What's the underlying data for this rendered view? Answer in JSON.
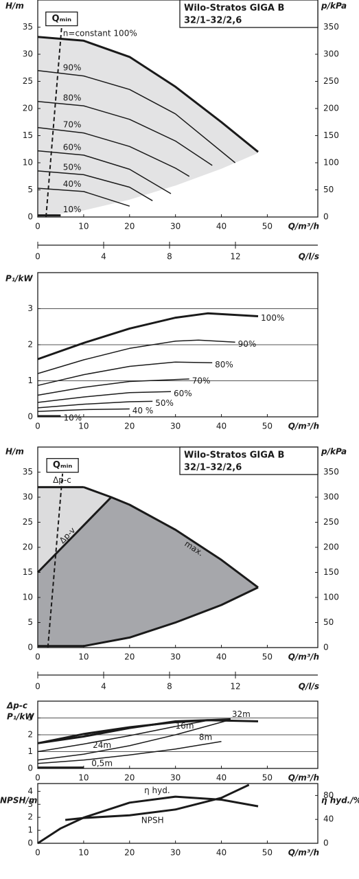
{
  "chart_data": [
    {
      "type": "line",
      "title": "Wilo-Stratos GIGA B",
      "subtitle": "32/1–32/2,6",
      "ylabel": "H/m",
      "y2label": "p/kPa",
      "xlabel": "Q/m³/h",
      "x2label": "Q/l/s",
      "xlim": [
        0,
        61
      ],
      "xticks": [
        0,
        10,
        20,
        30,
        40,
        50
      ],
      "ylim": [
        0,
        40
      ],
      "yticks": [
        0,
        5,
        10,
        15,
        20,
        25,
        30,
        35
      ],
      "y2lim": [
        0,
        400
      ],
      "y2ticks": [
        0,
        50,
        100,
        150,
        200,
        250,
        300,
        350
      ],
      "x2lim": [
        0,
        17
      ],
      "x2ticks": [
        0,
        4,
        8,
        12
      ],
      "color": "#1a1a1a",
      "area_color": "#e3e3e4",
      "qmin": {
        "label": "Qₘᵢₙ",
        "x": [
          1.8,
          5.2
        ],
        "values": [
          0,
          35
        ]
      },
      "area": {
        "x": [
          0,
          10,
          20,
          30,
          40,
          48
        ],
        "lower": [
          0,
          1.2,
          3.2,
          5.8,
          8.9,
          11.8
        ]
      },
      "series": [
        {
          "name": "n=constant 100%",
          "bold": true,
          "x": [
            0,
            10,
            20,
            30,
            40,
            48
          ],
          "values": [
            33.2,
            32.5,
            29.5,
            24,
            17.5,
            12
          ]
        },
        {
          "name": "90%",
          "x": [
            0,
            10,
            20,
            30,
            43
          ],
          "values": [
            27,
            26,
            23.5,
            19,
            10
          ]
        },
        {
          "name": "80%",
          "x": [
            0,
            10,
            20,
            30,
            38
          ],
          "values": [
            21.3,
            20.5,
            18,
            14,
            9.5
          ]
        },
        {
          "name": "70%",
          "x": [
            0,
            10,
            20,
            30,
            33
          ],
          "values": [
            16.5,
            15.5,
            13,
            9,
            7.5
          ]
        },
        {
          "name": "60%",
          "x": [
            0,
            10,
            20,
            29
          ],
          "values": [
            12.2,
            11.4,
            8.8,
            4.3
          ]
        },
        {
          "name": "50%",
          "x": [
            0,
            10,
            20,
            25
          ],
          "values": [
            8.5,
            7.8,
            5.5,
            3
          ]
        },
        {
          "name": "40%",
          "x": [
            0,
            10,
            20
          ],
          "values": [
            5.3,
            4.7,
            2
          ]
        },
        {
          "name": "10%",
          "bold": true,
          "x": [
            0,
            5
          ],
          "values": [
            0.3,
            0.3
          ]
        }
      ]
    },
    {
      "type": "line",
      "ylabel": "P₁/kW",
      "xlabel": "Q/m³/h",
      "xlim": [
        0,
        61
      ],
      "xticks": [
        0,
        10,
        20,
        30,
        40,
        50
      ],
      "ylim": [
        0,
        4
      ],
      "yticks": [
        0,
        1,
        2,
        3
      ],
      "grid": true,
      "color": "#1a1a1a",
      "series": [
        {
          "name": "100%",
          "bold": true,
          "x": [
            0,
            10,
            20,
            30,
            37,
            48
          ],
          "values": [
            1.6,
            2.05,
            2.45,
            2.75,
            2.87,
            2.79
          ]
        },
        {
          "name": "90%",
          "x": [
            0,
            10,
            20,
            30,
            35,
            43
          ],
          "values": [
            1.2,
            1.58,
            1.9,
            2.1,
            2.13,
            2.07
          ]
        },
        {
          "name": "80%",
          "x": [
            0,
            10,
            20,
            30,
            38
          ],
          "values": [
            0.87,
            1.17,
            1.4,
            1.52,
            1.5
          ]
        },
        {
          "name": "70%",
          "x": [
            0,
            10,
            20,
            33
          ],
          "values": [
            0.6,
            0.82,
            0.98,
            1.05
          ]
        },
        {
          "name": "60%",
          "x": [
            0,
            10,
            20,
            29
          ],
          "values": [
            0.4,
            0.55,
            0.67,
            0.7
          ]
        },
        {
          "name": "50%",
          "x": [
            0,
            10,
            20,
            25
          ],
          "values": [
            0.25,
            0.35,
            0.42,
            0.43
          ]
        },
        {
          "name": "40 %",
          "x": [
            0,
            10,
            20
          ],
          "values": [
            0.15,
            0.2,
            0.22
          ]
        },
        {
          "name": "10%",
          "bold": true,
          "x": [
            0,
            5
          ],
          "values": [
            0.02,
            0.02
          ]
        }
      ]
    },
    {
      "type": "line",
      "title": "Wilo-Stratos GIGA B",
      "subtitle": "32/1–32/2,6",
      "ylabel": "H/m",
      "y2label": "p/kPa",
      "xlabel": "Q/m³/h",
      "x2label": "Q/l/s",
      "xlim": [
        0,
        61
      ],
      "xticks": [
        0,
        10,
        20,
        30,
        40,
        50
      ],
      "ylim": [
        0,
        40
      ],
      "yticks": [
        0,
        5,
        10,
        15,
        20,
        25,
        30,
        35
      ],
      "y2lim": [
        0,
        400
      ],
      "y2ticks": [
        0,
        50,
        100,
        150,
        200,
        250,
        300,
        350
      ],
      "x2lim": [
        0,
        17
      ],
      "x2ticks": [
        0,
        4,
        8,
        12
      ],
      "color": "#1a1a1a",
      "light_color": "#dcdcdd",
      "dark_color": "#a6a7ab",
      "qmin": {
        "label": "Qₘᵢₙ",
        "x": [
          2.2,
          5.4
        ],
        "values": [
          0,
          34.7
        ]
      },
      "series": [
        {
          "name": "Δp-c",
          "bold": true,
          "x": [
            0,
            10
          ],
          "values": [
            32,
            32
          ]
        },
        {
          "name": "Δp-v",
          "bold": true,
          "x": [
            0,
            16
          ],
          "values": [
            15,
            30
          ]
        },
        {
          "name": "max.",
          "bold": true,
          "x": [
            10,
            16,
            20,
            30,
            40,
            48
          ],
          "values": [
            32,
            30,
            28.5,
            23.5,
            17.5,
            12
          ]
        },
        {
          "bold": true,
          "x": [
            0,
            10,
            20,
            30,
            40,
            48
          ],
          "values": [
            0.3,
            0.3,
            2,
            5,
            8.5,
            12
          ]
        }
      ]
    },
    {
      "type": "line",
      "ylabel": [
        "Δp-c",
        "P₁/kW"
      ],
      "xlabel": "Q/m³/h",
      "xlim": [
        0,
        61
      ],
      "xticks": [
        0,
        10,
        20,
        30,
        40,
        50
      ],
      "ylim": [
        0,
        4
      ],
      "yticks": [
        0,
        1,
        2,
        3
      ],
      "grid": true,
      "color": "#1a1a1a",
      "series": [
        {
          "bold": true,
          "x": [
            0,
            10,
            20,
            30,
            37,
            48
          ],
          "values": [
            1.5,
            2.05,
            2.45,
            2.75,
            2.87,
            2.8
          ]
        },
        {
          "name": "32m",
          "bold": true,
          "x": [
            0,
            10,
            20,
            30,
            42
          ],
          "values": [
            1.5,
            1.9,
            2.4,
            2.8,
            2.92
          ]
        },
        {
          "name": "24m",
          "x": [
            0,
            10,
            20,
            30,
            38
          ],
          "values": [
            1.0,
            1.45,
            1.95,
            2.5,
            2.9
          ]
        },
        {
          "name": "16m",
          "x": [
            0,
            10,
            20,
            30,
            42
          ],
          "values": [
            0.5,
            0.85,
            1.35,
            2.0,
            2.9
          ]
        },
        {
          "name": "8m",
          "x": [
            0,
            10,
            20,
            30,
            40
          ],
          "values": [
            0.3,
            0.5,
            0.8,
            1.15,
            1.6
          ]
        },
        {
          "name": "0,5m",
          "bold": true,
          "x": [
            0,
            10
          ],
          "values": [
            0.05,
            0.05
          ]
        }
      ]
    },
    {
      "type": "line",
      "ylabel": "NPSH/m",
      "y2label": "η hyd./%",
      "xlabel": "Q/m³/h",
      "xlim": [
        0,
        61
      ],
      "xticks": [
        0,
        10,
        20,
        30,
        40,
        50
      ],
      "ylim": [
        0,
        4.6
      ],
      "yticks": [
        0,
        1,
        2,
        3,
        4
      ],
      "y2lim": [
        0,
        100
      ],
      "y2ticks": [
        0,
        40,
        80
      ],
      "color": "#1a1a1a",
      "series": [
        {
          "name": "η hyd.",
          "bold": true,
          "axis": "y2",
          "x": [
            0,
            5,
            10,
            20,
            30,
            40,
            48
          ],
          "values": [
            0,
            25,
            43,
            68,
            78,
            73,
            62
          ]
        },
        {
          "name": "NPSH",
          "bold": true,
          "x": [
            6,
            10,
            20,
            30,
            40,
            46
          ],
          "values": [
            1.8,
            1.95,
            2.15,
            2.6,
            3.5,
            4.5
          ]
        }
      ]
    }
  ]
}
